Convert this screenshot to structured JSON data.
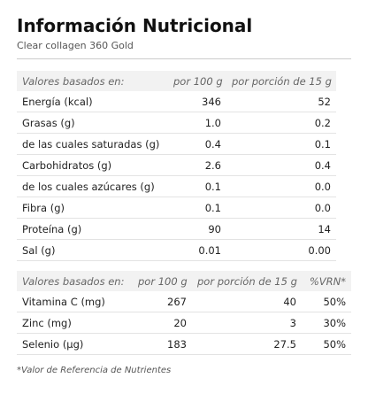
{
  "header": {
    "title": "Información Nutricional",
    "subtitle": "Clear collagen 360 Gold"
  },
  "table1": {
    "columns": [
      "Valores basados en:",
      "por 100 g",
      "por porción de 15 g"
    ],
    "rows": [
      [
        "Energía (kcal)",
        "346",
        "52"
      ],
      [
        "Grasas (g)",
        "1.0",
        "0.2"
      ],
      [
        "de las cuales saturadas (g)",
        "0.4",
        "0.1"
      ],
      [
        "Carbohidratos (g)",
        "2.6",
        "0.4"
      ],
      [
        "de los cuales azúcares (g)",
        "0.1",
        "0.0"
      ],
      [
        "Fibra (g)",
        "0.1",
        "0.0"
      ],
      [
        "Proteína (g)",
        "90",
        "14"
      ],
      [
        "Sal (g)",
        "0.01",
        "0.00"
      ]
    ]
  },
  "table2": {
    "columns": [
      "Valores basados en:",
      "por 100 g",
      "por porción de 15 g",
      "%VRN*"
    ],
    "rows": [
      [
        "Vitamina C (mg)",
        "267",
        "40",
        "50%"
      ],
      [
        "Zinc (mg)",
        "20",
        "3",
        "30%"
      ],
      [
        "Selenio (µg)",
        "183",
        "27.5",
        "50%"
      ]
    ]
  },
  "footnote": "*Valor de Referencia de Nutrientes"
}
